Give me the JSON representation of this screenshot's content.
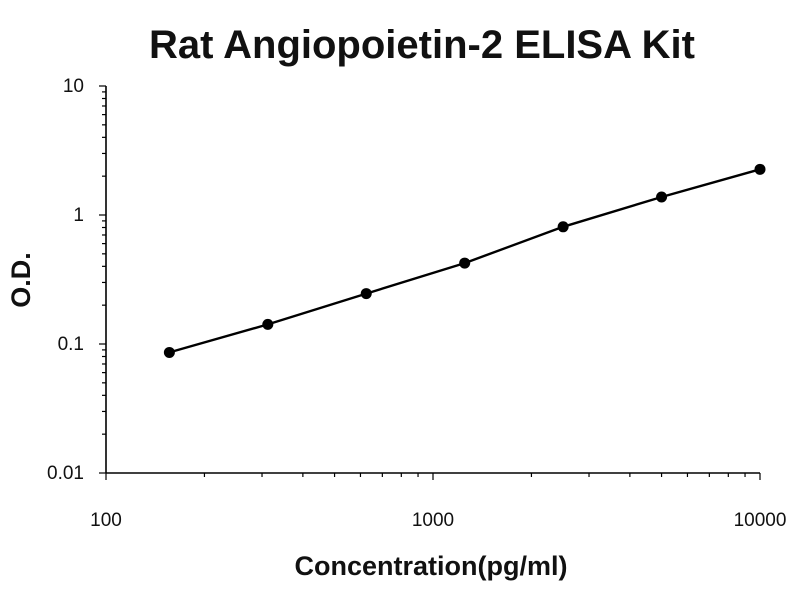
{
  "chart_data": {
    "type": "line",
    "title": "Rat Angiopoietin-2 ELISA Kit",
    "xlabel": "Concentration(pg/ml)",
    "ylabel": "O.D.",
    "x_scale": "log",
    "y_scale": "log",
    "xlim": [
      100,
      10000
    ],
    "ylim": [
      0.01,
      10
    ],
    "x_ticks": [
      100,
      1000,
      10000
    ],
    "x_tick_labels": [
      "100",
      "1000",
      "10000"
    ],
    "y_ticks": [
      0.01,
      0.1,
      1,
      10
    ],
    "y_tick_labels": [
      "0.01",
      "0.1",
      "1",
      "10"
    ],
    "grid": false,
    "legend": "none",
    "series": [
      {
        "x": [
          156.25,
          312.5,
          625,
          1250,
          2500,
          5000,
          10000
        ],
        "y": [
          0.086,
          0.142,
          0.246,
          0.424,
          0.81,
          1.38,
          2.26
        ],
        "marker": "circle",
        "color": "#000000"
      }
    ]
  }
}
